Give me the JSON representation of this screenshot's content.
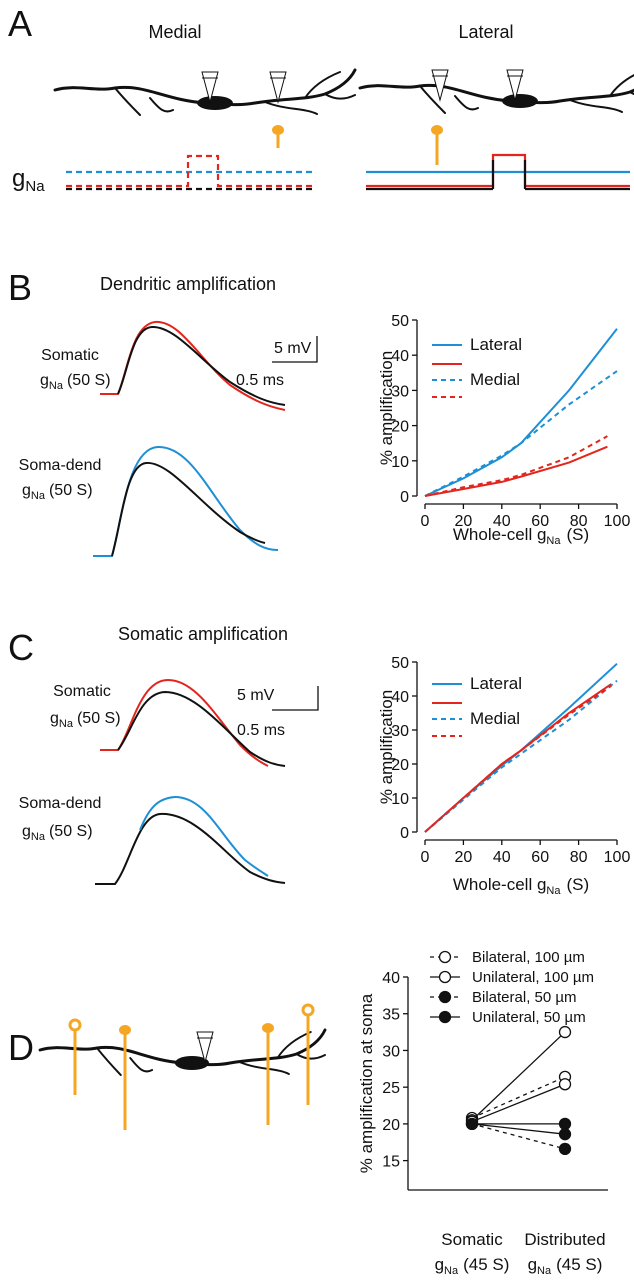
{
  "panels": {
    "A": {
      "letter": "A",
      "medial": "Medial",
      "lateral": "Lateral",
      "conductance": {
        "symbol": "g",
        "subscript": "Na"
      }
    },
    "B": {
      "letter": "B",
      "title": "Dendritic amplification",
      "somatic": {
        "label": "Somatic",
        "symbol": "g",
        "subscript": "Na",
        "suffix": "(50 S)"
      },
      "soma_dend": {
        "label": "Soma-dend",
        "symbol": "g",
        "subscript": "Na",
        "suffix": "(50 S)"
      },
      "scale_v": "5 mV",
      "scale_t": "0.5 ms"
    },
    "C": {
      "letter": "C",
      "title": "Somatic amplification",
      "somatic": {
        "label": "Somatic",
        "symbol": "g",
        "subscript": "Na",
        "suffix": "(50 S)"
      },
      "soma_dend": {
        "label": "Soma-dend",
        "symbol": "g",
        "subscript": "Na",
        "suffix": "(50 S)"
      },
      "scale_v": "5 mV",
      "scale_t": "0.5 ms"
    },
    "D": {
      "letter": "D"
    }
  },
  "chart_data": [
    {
      "type": "line",
      "ylabel": "% amplification",
      "xlabel": {
        "text": "Whole-cell g",
        "subscript": "Na",
        "suffix": "(S)"
      },
      "xlim": [
        0,
        100
      ],
      "xticks": [
        0,
        20,
        40,
        60,
        80,
        100
      ],
      "ylim": [
        0,
        50
      ],
      "yticks": [
        0,
        10,
        20,
        30,
        40,
        50
      ],
      "series": [
        {
          "name": "Lateral",
          "color": "#1e8fd5",
          "dash": false,
          "x": [
            0,
            20,
            40,
            50,
            75,
            100
          ],
          "values": [
            0,
            5,
            11,
            15,
            30,
            47.5
          ]
        },
        {
          "name": null,
          "color": "#e3261d",
          "dash": false,
          "x": [
            0,
            20,
            40,
            50,
            75,
            95
          ],
          "values": [
            0,
            2,
            4,
            5.5,
            9.5,
            14
          ]
        },
        {
          "name": "Medial",
          "color": "#1e8fd5",
          "dash": true,
          "x": [
            0,
            20,
            40,
            50,
            75,
            100
          ],
          "values": [
            0,
            5.5,
            11.5,
            15,
            26,
            35.5
          ]
        },
        {
          "name": null,
          "color": "#e3261d",
          "dash": true,
          "x": [
            0,
            20,
            40,
            50,
            75,
            95
          ],
          "values": [
            0,
            2.5,
            4.5,
            6,
            11,
            17
          ]
        }
      ]
    },
    {
      "type": "line",
      "ylabel": "% amplification",
      "xlabel": {
        "text": "Whole-cell g",
        "subscript": "Na",
        "suffix": "(S)"
      },
      "xlim": [
        0,
        100
      ],
      "xticks": [
        0,
        20,
        40,
        60,
        80,
        100
      ],
      "ylim": [
        0,
        50
      ],
      "yticks": [
        0,
        10,
        20,
        30,
        40,
        50
      ],
      "series": [
        {
          "name": "Lateral",
          "color": "#1e8fd5",
          "dash": false,
          "x": [
            0,
            20,
            40,
            50,
            75,
            100
          ],
          "values": [
            0,
            10,
            19.5,
            24,
            36.5,
            49.5
          ]
        },
        {
          "name": null,
          "color": "#e3261d",
          "dash": false,
          "x": [
            0,
            20,
            40,
            50,
            75,
            97
          ],
          "values": [
            0,
            10,
            20,
            24,
            35,
            43.5
          ]
        },
        {
          "name": "Medial",
          "color": "#1e8fd5",
          "dash": true,
          "x": [
            0,
            20,
            40,
            50,
            75,
            100
          ],
          "values": [
            0,
            9.5,
            19,
            23,
            33,
            44.5
          ]
        },
        {
          "name": null,
          "color": "#e3261d",
          "dash": true,
          "x": [
            0,
            20,
            40,
            50,
            75,
            97
          ],
          "values": [
            0,
            10,
            20,
            24,
            34.5,
            43
          ]
        }
      ]
    },
    {
      "type": "line",
      "ylabel": "% amplification at soma",
      "categories": [
        {
          "label": "Somatic",
          "symbol": "g",
          "subscript": "Na",
          "suffix": "(45 S)"
        },
        {
          "label": "Distributed",
          "symbol": "g",
          "subscript": "Na",
          "suffix": "(45 S)"
        }
      ],
      "ylim": [
        11,
        40
      ],
      "yticks": [
        15,
        20,
        25,
        30,
        35,
        40
      ],
      "series": [
        {
          "name": "Bilateral, 100 µm",
          "color": "#111111",
          "dash": true,
          "marker": "open",
          "values": [
            20.8,
            26.4
          ]
        },
        {
          "name": "Unilateral, 100 µm",
          "color": "#111111",
          "dash": false,
          "marker": "open",
          "values": [
            20.5,
            32.5
          ]
        },
        {
          "name": "Bilateral, 50 µm",
          "color": "#111111",
          "dash": true,
          "marker": "filled",
          "values": [
            20,
            16.6
          ]
        },
        {
          "name": "Unilateral,  50 µm",
          "color": "#111111",
          "dash": false,
          "marker": "filled",
          "values": [
            20,
            20
          ]
        },
        {
          "name": null,
          "color": "#111111",
          "dash": false,
          "marker": "open",
          "values": [
            20.3,
            25.4
          ]
        },
        {
          "name": null,
          "color": "#111111",
          "dash": false,
          "marker": "filled",
          "values": [
            20,
            18.6
          ]
        }
      ]
    }
  ]
}
